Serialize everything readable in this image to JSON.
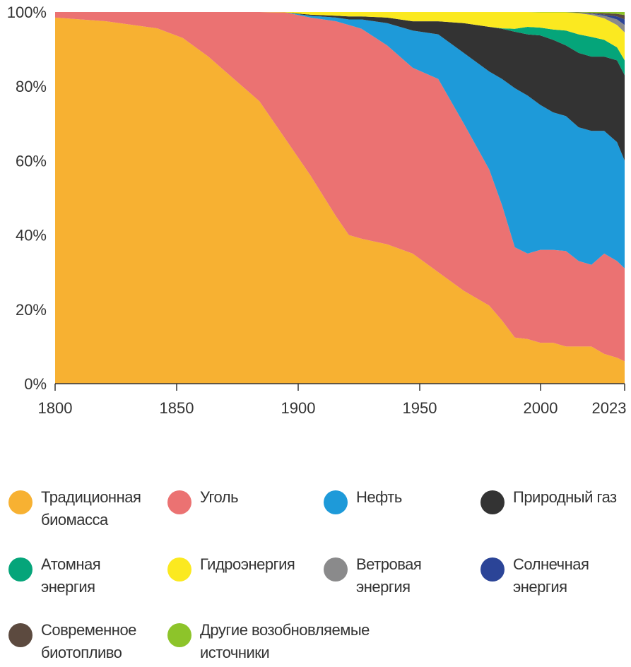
{
  "chart_data": {
    "type": "area",
    "stacked": "percent",
    "title": "",
    "xlabel": "",
    "ylabel": "",
    "xlim": [
      1800,
      2023
    ],
    "ylim": [
      0,
      100
    ],
    "x_ticks": [
      "1800",
      "1850",
      "1900",
      "1950",
      "2000",
      "2023"
    ],
    "y_ticks": [
      "0%",
      "20%",
      "40%",
      "60%",
      "80%",
      "100%"
    ],
    "grid": false,
    "legend_position": "bottom",
    "x": [
      1800,
      1820,
      1840,
      1850,
      1860,
      1870,
      1880,
      1890,
      1900,
      1910,
      1915,
      1920,
      1930,
      1940,
      1950,
      1960,
      1970,
      1975,
      1980,
      1985,
      1990,
      1995,
      2000,
      2005,
      2010,
      2015,
      2020,
      2023
    ],
    "series": [
      {
        "name": "Традиционная биомасса",
        "color": "#f7b132",
        "values": [
          98.5,
          97.5,
          95.6,
          93,
          88,
          82,
          76,
          66,
          56,
          45,
          40,
          39,
          37.5,
          35,
          30,
          25,
          21,
          17,
          12.4,
          12,
          11,
          11,
          10,
          10,
          10,
          8,
          7,
          6
        ]
      },
      {
        "name": "Уголь",
        "color": "#eb7272",
        "values": [
          1.5,
          2.5,
          4.4,
          7,
          12,
          18,
          24,
          33.9,
          42.5,
          52.5,
          56.5,
          56.5,
          53.5,
          50,
          52,
          45,
          36.6,
          31,
          24.3,
          23,
          25,
          25,
          25.7,
          23,
          22,
          27,
          26,
          25
        ]
      },
      {
        "name": "Нефть",
        "color": "#1e9ad9",
        "values": [
          0,
          0,
          0,
          0,
          0,
          0,
          0,
          0,
          0.5,
          1,
          1.5,
          2.5,
          6,
          10,
          12,
          19,
          26.4,
          34,
          42.8,
          42.5,
          39,
          37,
          36.3,
          36,
          36,
          33,
          32,
          29
        ]
      },
      {
        "name": "Природный газ",
        "color": "#333333",
        "values": [
          0,
          0,
          0,
          0,
          0,
          0,
          0,
          0,
          0.3,
          0.5,
          0.8,
          0.8,
          1.5,
          2.5,
          3.5,
          8,
          12,
          13.5,
          15.2,
          16.5,
          18.7,
          19.5,
          19,
          20,
          20,
          20,
          22,
          23
        ]
      },
      {
        "name": "Атомная энергия",
        "color": "#05a57a",
        "values": [
          0,
          0,
          0,
          0,
          0,
          0,
          0,
          0,
          0,
          0,
          0,
          0,
          0,
          0,
          0,
          0,
          0,
          0.1,
          0.8,
          2,
          2.1,
          2.8,
          4,
          5,
          5.3,
          4.5,
          3.5,
          4
        ]
      },
      {
        "name": "Гидроэнергия",
        "color": "#fbe920",
        "values": [
          0,
          0,
          0,
          0,
          0,
          0,
          0,
          0.1,
          0.7,
          1,
          1.2,
          1.2,
          1.5,
          2.5,
          2.5,
          3,
          4,
          4.4,
          4.5,
          4,
          4.1,
          4.6,
          4.9,
          5.7,
          5.9,
          5.8,
          6,
          7.5
        ]
      },
      {
        "name": "Ветровая энергия",
        "color": "#8a8a8b",
        "values": [
          0,
          0,
          0,
          0,
          0,
          0,
          0,
          0,
          0,
          0,
          0,
          0,
          0,
          0,
          0,
          0,
          0,
          0,
          0,
          0,
          0,
          0,
          0,
          0.1,
          0.3,
          0.7,
          1.5,
          2
        ]
      },
      {
        "name": "Солнечная энергия",
        "color": "#2b4497",
        "values": [
          0,
          0,
          0,
          0,
          0,
          0,
          0,
          0,
          0,
          0,
          0,
          0,
          0,
          0,
          0,
          0,
          0,
          0,
          0,
          0,
          0,
          0,
          0,
          0,
          0.1,
          0.3,
          0.8,
          1.5
        ]
      },
      {
        "name": "Современное биотопливо",
        "color": "#5c4a3f",
        "values": [
          0,
          0,
          0,
          0,
          0,
          0,
          0,
          0,
          0,
          0,
          0,
          0,
          0,
          0,
          0,
          0,
          0,
          0,
          0,
          0,
          0,
          0,
          0,
          0.1,
          0.2,
          0.4,
          0.7,
          1.2
        ]
      },
      {
        "name": "Другие возобновляемые источники",
        "color": "#8dc42a",
        "values": [
          0,
          0,
          0,
          0,
          0,
          0,
          0,
          0,
          0,
          0,
          0,
          0,
          0,
          0,
          0,
          0,
          0,
          0,
          0,
          0,
          0.1,
          0.1,
          0.1,
          0.1,
          0.2,
          0.3,
          0.5,
          0.8
        ]
      }
    ]
  },
  "legend": [
    {
      "label": "Традиционная\nбиомасса",
      "color": "#f7b132"
    },
    {
      "label": "Уголь",
      "color": "#eb7272"
    },
    {
      "label": "Нефть",
      "color": "#1e9ad9"
    },
    {
      "label": "Природный газ",
      "color": "#333333"
    },
    {
      "label": "Атомная\nэнергия",
      "color": "#05a57a"
    },
    {
      "label": "Гидроэнергия",
      "color": "#fbe920"
    },
    {
      "label": "Ветровая\nэнергия",
      "color": "#8a8a8b"
    },
    {
      "label": "Солнечная\nэнергия",
      "color": "#2b4497"
    },
    {
      "label": "Современное\nбиотопливо",
      "color": "#5c4a3f"
    },
    {
      "label": "Другие возобновляемые\nисточники",
      "color": "#8dc42a"
    }
  ]
}
